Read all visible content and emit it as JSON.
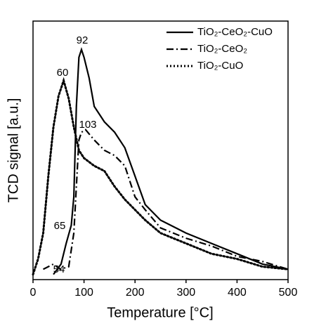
{
  "chart_data": {
    "type": "line",
    "xlabel": "Temperature [°C]",
    "ylabel": "TCD signal [a.u.]",
    "xlim": [
      0,
      500
    ],
    "xticks": [
      0,
      100,
      200,
      300,
      400,
      500
    ],
    "ylim": [
      0,
      100
    ],
    "legend": "upper right",
    "annotations": [
      "92",
      "60",
      "103",
      "65",
      "54"
    ],
    "series": [
      {
        "name": "TiO₂-CeO₂-CuO",
        "color": "#000000",
        "dash": "solid",
        "x": [
          40,
          55,
          65,
          75,
          80,
          85,
          90,
          95,
          100,
          110,
          120,
          140,
          160,
          180,
          200,
          220,
          250,
          300,
          350,
          400,
          450,
          500
        ],
        "values": [
          2,
          6,
          14,
          21,
          32,
          67,
          86,
          89,
          86,
          78,
          67,
          61,
          57,
          51,
          40,
          29,
          23,
          18,
          14,
          10,
          6,
          4
        ]
      },
      {
        "name": "TiO₂-CeO₂",
        "color": "#000000",
        "dash": "dashdot",
        "x": [
          20,
          40,
          54,
          70,
          80,
          90,
          95,
          103,
          120,
          140,
          160,
          180,
          200,
          220,
          250,
          300,
          350,
          400,
          450,
          500
        ],
        "values": [
          4,
          6,
          4,
          5,
          18,
          54,
          57,
          58,
          54,
          50,
          48,
          44,
          32,
          27,
          20,
          16,
          13,
          9,
          7,
          4
        ]
      },
      {
        "name": "TiO₂-CuO",
        "color": "#000000",
        "dash": "dotted",
        "x": [
          0,
          10,
          20,
          30,
          40,
          50,
          60,
          70,
          80,
          90,
          100,
          120,
          140,
          160,
          180,
          200,
          220,
          250,
          300,
          350,
          400,
          450,
          500
        ],
        "values": [
          2,
          8,
          18,
          40,
          59,
          71,
          77,
          70,
          59,
          50,
          47,
          44,
          42,
          36,
          31,
          27,
          23,
          18,
          14,
          10,
          8,
          5,
          4
        ]
      }
    ]
  }
}
